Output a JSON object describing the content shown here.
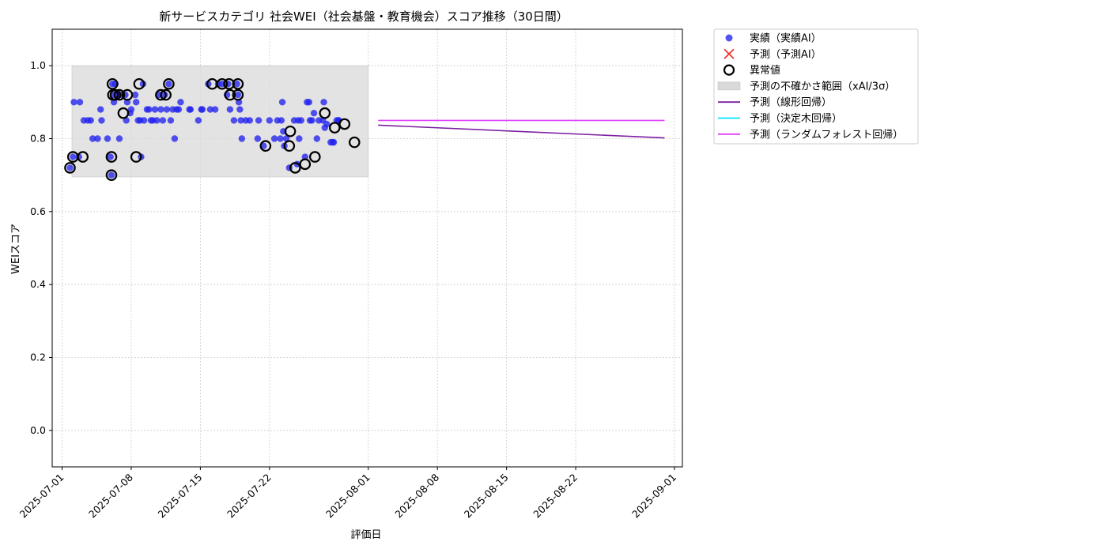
{
  "chart_data": {
    "type": "scatter",
    "title": "新サービスカテゴリ 社会WEI（社会基盤・教育機会）スコア推移（30日間）",
    "xlabel": "評価日",
    "ylabel": "WEIスコア",
    "ylim": [
      -0.1,
      1.1
    ],
    "xlim": [
      "2025-06-30",
      "2025-09-01"
    ],
    "x_ticks": [
      "2025-07-01",
      "2025-07-08",
      "2025-07-15",
      "2025-07-22",
      "2025-08-01",
      "2025-08-08",
      "2025-08-15",
      "2025-08-22",
      "2025-09-01"
    ],
    "y_ticks": [
      "0.0",
      "0.2",
      "0.4",
      "0.6",
      "0.8",
      "1.0"
    ],
    "grid": true,
    "legend_position": "outside-right-top",
    "uncertainty_band": {
      "x_start": "2025-07-02",
      "x_end": "2025-08-01",
      "y_low": 0.695,
      "y_high": 1.0
    },
    "legend": [
      {
        "label": "実績（実績AI）",
        "kind": "dot",
        "color": "#2222ee"
      },
      {
        "label": "予測（予測AI）",
        "kind": "x",
        "color": "#ee3333"
      },
      {
        "label": "異常値",
        "kind": "ring",
        "color": "#000000"
      },
      {
        "label": "予測の不確かさ範囲（xAI/3σ）",
        "kind": "band",
        "color": "#d9d9d9"
      },
      {
        "label": "予測（線形回帰）",
        "kind": "line",
        "color": "#7b1fa2"
      },
      {
        "label": "予測（決定木回帰）",
        "kind": "line",
        "color": "#00e5ff"
      },
      {
        "label": "予測（ランダムフォレスト回帰）",
        "kind": "line",
        "color": "#e040fb"
      }
    ],
    "series": [
      {
        "name": "実績（実績AI）",
        "type": "scatter",
        "color": "#2222ee",
        "points": [
          [
            0.8,
            0.72
          ],
          [
            1.1,
            0.75
          ],
          [
            1.2,
            0.9
          ],
          [
            1.7,
            0.75
          ],
          [
            1.8,
            0.9
          ],
          [
            2.2,
            0.85
          ],
          [
            2.6,
            0.85
          ],
          [
            2.9,
            0.85
          ],
          [
            3.1,
            0.8
          ],
          [
            3.6,
            0.8
          ],
          [
            3.9,
            0.88
          ],
          [
            4.0,
            0.85
          ],
          [
            4.6,
            0.8
          ],
          [
            4.9,
            0.75
          ],
          [
            5.0,
            0.7
          ],
          [
            5.1,
            0.95
          ],
          [
            5.2,
            0.92
          ],
          [
            5.25,
            0.9
          ],
          [
            5.4,
            0.95
          ],
          [
            5.6,
            0.92
          ],
          [
            5.8,
            0.8
          ],
          [
            6.0,
            0.92
          ],
          [
            6.4,
            0.92
          ],
          [
            6.5,
            0.85
          ],
          [
            6.6,
            0.9
          ],
          [
            6.9,
            0.87
          ],
          [
            7.0,
            0.88
          ],
          [
            7.4,
            0.92
          ],
          [
            7.5,
            0.9
          ],
          [
            7.7,
            0.85
          ],
          [
            7.9,
            0.85
          ],
          [
            8.0,
            0.75
          ],
          [
            8.2,
            0.95
          ],
          [
            8.3,
            0.85
          ],
          [
            8.6,
            0.88
          ],
          [
            8.8,
            0.88
          ],
          [
            9.0,
            0.85
          ],
          [
            9.2,
            0.85
          ],
          [
            9.4,
            0.88
          ],
          [
            9.6,
            0.85
          ],
          [
            9.8,
            0.92
          ],
          [
            10.0,
            0.88
          ],
          [
            10.2,
            0.85
          ],
          [
            10.4,
            0.92
          ],
          [
            10.6,
            0.88
          ],
          [
            10.8,
            0.95
          ],
          [
            11.0,
            0.85
          ],
          [
            11.2,
            0.88
          ],
          [
            11.4,
            0.8
          ],
          [
            11.6,
            0.88
          ],
          [
            11.8,
            0.88
          ],
          [
            12.0,
            0.9
          ],
          [
            12.9,
            0.88
          ],
          [
            13.0,
            0.88
          ],
          [
            13.8,
            0.85
          ],
          [
            14.1,
            0.88
          ],
          [
            14.2,
            0.88
          ],
          [
            14.8,
            0.95
          ],
          [
            15.0,
            0.88
          ],
          [
            15.8,
            0.95
          ],
          [
            16.2,
            0.95
          ],
          [
            16.7,
            0.92
          ],
          [
            16.8,
            0.95
          ],
          [
            17.0,
            0.88
          ],
          [
            17.4,
            0.85
          ],
          [
            17.7,
            0.95
          ],
          [
            17.8,
            0.92
          ],
          [
            17.9,
            0.9
          ],
          [
            18.0,
            0.88
          ],
          [
            18.1,
            0.85
          ],
          [
            18.2,
            0.8
          ],
          [
            18.6,
            0.85
          ],
          [
            19.0,
            0.85
          ],
          [
            19.8,
            0.8
          ],
          [
            19.9,
            0.85
          ],
          [
            20.4,
            0.78
          ],
          [
            21.0,
            0.85
          ],
          [
            21.5,
            0.8
          ],
          [
            21.8,
            0.85
          ],
          [
            22.1,
            0.8
          ],
          [
            22.2,
            0.85
          ],
          [
            22.3,
            0.9
          ],
          [
            22.4,
            0.82
          ],
          [
            22.5,
            0.78
          ],
          [
            22.7,
            0.8
          ],
          [
            23.0,
            0.72
          ],
          [
            23.8,
            0.73
          ],
          [
            23.9,
            0.85
          ],
          [
            24.2,
            0.85
          ],
          [
            24.6,
            0.75
          ],
          [
            25.1,
            0.85
          ],
          [
            25.3,
            0.85
          ],
          [
            25.5,
            0.87
          ],
          [
            25.8,
            0.8
          ],
          [
            26.0,
            0.85
          ],
          [
            26.4,
            0.85
          ],
          [
            26.6,
            0.83
          ],
          [
            26.8,
            0.84
          ],
          [
            27.2,
            0.79
          ],
          [
            27.4,
            0.79
          ],
          [
            27.5,
            0.79
          ],
          [
            28.0,
            0.85
          ],
          [
            23.5,
            0.85
          ],
          [
            24.0,
            0.8
          ],
          [
            25.0,
            0.9
          ],
          [
            24.8,
            0.9
          ],
          [
            26.5,
            0.9
          ],
          [
            27.8,
            0.85
          ],
          [
            28.0,
            0.85
          ],
          [
            15.5,
            0.88
          ]
        ]
      },
      {
        "name": "異常値",
        "type": "ring",
        "color": "#000000",
        "points": [
          [
            0.8,
            0.72
          ],
          [
            1.1,
            0.75
          ],
          [
            2.1,
            0.75
          ],
          [
            5.0,
            0.75
          ],
          [
            5.0,
            0.7
          ],
          [
            5.1,
            0.95
          ],
          [
            5.15,
            0.92
          ],
          [
            5.4,
            0.92
          ],
          [
            5.8,
            0.92
          ],
          [
            6.2,
            0.87
          ],
          [
            6.6,
            0.92
          ],
          [
            7.5,
            0.75
          ],
          [
            7.8,
            0.95
          ],
          [
            10.0,
            0.92
          ],
          [
            10.5,
            0.92
          ],
          [
            10.8,
            0.95
          ],
          [
            15.2,
            0.95
          ],
          [
            16.2,
            0.95
          ],
          [
            16.9,
            0.95
          ],
          [
            17.0,
            0.92
          ],
          [
            17.8,
            0.95
          ],
          [
            17.8,
            0.92
          ],
          [
            20.6,
            0.78
          ],
          [
            23.1,
            0.82
          ],
          [
            23.0,
            0.78
          ],
          [
            23.6,
            0.72
          ],
          [
            24.6,
            0.73
          ],
          [
            25.6,
            0.75
          ],
          [
            26.6,
            0.87
          ],
          [
            27.6,
            0.83
          ],
          [
            28.6,
            0.84
          ],
          [
            29.6,
            0.79
          ]
        ]
      }
    ],
    "forecast_lines": [
      {
        "name": "予測（線形回帰）",
        "color": "#7b1fa2",
        "x": [
          "2025-08-02",
          "2025-08-31"
        ],
        "y": [
          0.837,
          0.802
        ]
      },
      {
        "name": "予測（ランダムフォレスト回帰）",
        "color": "#e040fb",
        "x": [
          "2025-08-02",
          "2025-08-31"
        ],
        "y": [
          0.85,
          0.85
        ]
      }
    ]
  }
}
